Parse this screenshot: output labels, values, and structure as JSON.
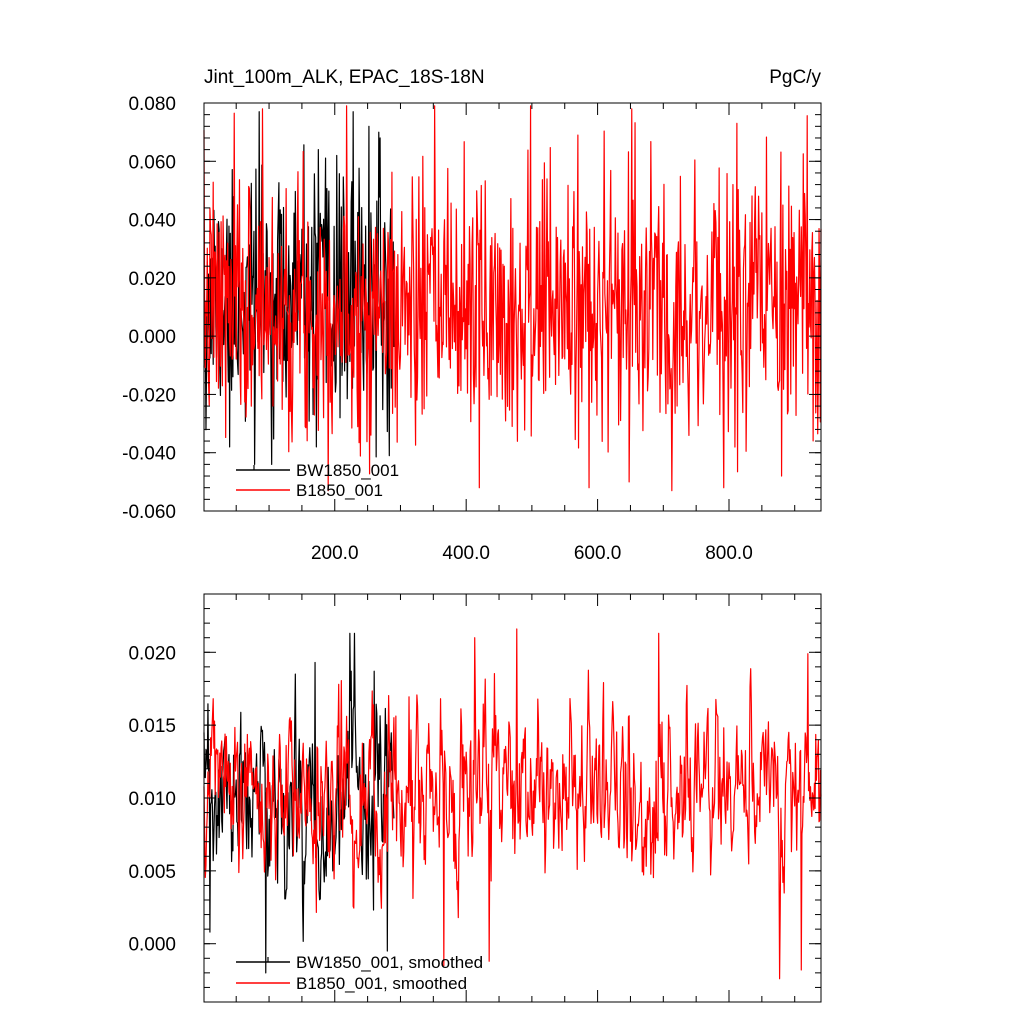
{
  "chart_data": [
    {
      "type": "line",
      "title_left": "Jint_100m_ALK, EPAC_18S-18N",
      "title_right": "PgC/y",
      "xlim": [
        1,
        940
      ],
      "ylim": [
        -0.06,
        0.08
      ],
      "x_ticks": [
        200,
        400,
        600,
        800
      ],
      "x_tick_labels": [
        "200.0",
        "400.0",
        "600.0",
        "800.0"
      ],
      "y_ticks": [
        -0.06,
        -0.04,
        -0.02,
        0.0,
        0.02,
        0.04,
        0.06,
        0.08
      ],
      "y_tick_labels": [
        "-0.060",
        "-0.040",
        "-0.020",
        "0.000",
        "0.020",
        "0.040",
        "0.060",
        "0.080"
      ],
      "legend_position": "bottom-left",
      "series": [
        {
          "name": "BW1850_001",
          "color": "#000000",
          "x_range": [
            1,
            290
          ],
          "mean": 0.012,
          "std": 0.02,
          "seed": 11,
          "smoothing": 0,
          "min": -0.044,
          "max": 0.077,
          "peaks": [
            [
              85,
              0.077
            ],
            [
              175,
              0.064
            ],
            [
              203,
              0.062
            ],
            [
              228,
              0.077
            ],
            [
              252,
              0.072
            ],
            [
              283,
              0.061
            ]
          ],
          "troughs": [
            [
              40,
              -0.038
            ],
            [
              78,
              -0.044
            ],
            [
              172,
              -0.038
            ],
            [
              283,
              -0.041
            ]
          ]
        },
        {
          "name": "B1850_001",
          "color": "#ff0000",
          "x_range": [
            1,
            940
          ],
          "mean": 0.01,
          "std": 0.022,
          "seed": 7,
          "smoothing": 0,
          "min": -0.053,
          "max": 0.079,
          "peaks": [
            [
              90,
              0.078
            ],
            [
              498,
              0.079
            ],
            [
              652,
              0.078
            ],
            [
              570,
              0.069
            ],
            [
              812,
              0.073
            ]
          ],
          "troughs": [
            [
              420,
              -0.052
            ],
            [
              587,
              -0.052
            ],
            [
              648,
              -0.05
            ],
            [
              792,
              -0.052
            ],
            [
              880,
              -0.048
            ]
          ]
        }
      ]
    },
    {
      "type": "line",
      "xlim": [
        1,
        940
      ],
      "ylim": [
        -0.004,
        0.024
      ],
      "x_ticks": [
        200,
        400,
        600,
        800
      ],
      "y_ticks": [
        0.0,
        0.005,
        0.01,
        0.015,
        0.02
      ],
      "y_tick_labels": [
        "0.000",
        "0.005",
        "0.010",
        "0.015",
        "0.020"
      ],
      "legend_position": "bottom-left",
      "series": [
        {
          "name": "BW1850_001, smoothed",
          "color": "#000000",
          "x_range": [
            1,
            290
          ],
          "mean": 0.0095,
          "std": 0.0035,
          "seed": 23,
          "smoothing": 0.55,
          "min": -0.002,
          "max": 0.0213,
          "peaks": [
            [
              140,
              0.0185
            ],
            [
              170,
              0.0193
            ],
            [
              223,
              0.0213
            ],
            [
              260,
              0.0187
            ]
          ],
          "troughs": [
            [
              95,
              -0.002
            ],
            [
              280,
              -0.0005
            ],
            [
              10,
              0.0008
            ]
          ]
        },
        {
          "name": "B1850_001, smoothed",
          "color": "#ff0000",
          "x_range": [
            1,
            940
          ],
          "mean": 0.0105,
          "std": 0.0033,
          "seed": 5,
          "smoothing": 0.55,
          "min": -0.0024,
          "max": 0.0216,
          "peaks": [
            [
              413,
              0.021
            ],
            [
              477,
              0.021
            ],
            [
              477,
              0.0216
            ],
            [
              693,
              0.0213
            ],
            [
              920,
              0.0199
            ]
          ],
          "troughs": [
            [
              366,
              -0.0015
            ],
            [
              435,
              -0.0012
            ],
            [
              877,
              -0.0024
            ],
            [
              910,
              -0.0018
            ]
          ]
        }
      ]
    }
  ]
}
